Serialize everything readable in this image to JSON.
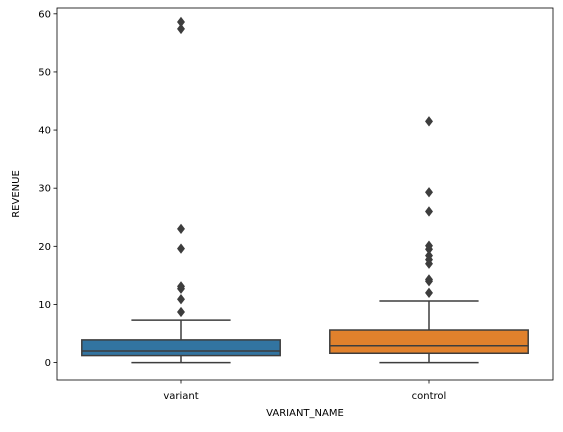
{
  "chart_data": {
    "type": "box",
    "title": "",
    "xlabel": "VARIANT_NAME",
    "ylabel": "REVENUE",
    "ylim": [
      -3,
      61
    ],
    "yticks": [
      0,
      10,
      20,
      30,
      40,
      50,
      60
    ],
    "categories": [
      "variant",
      "control"
    ],
    "colors": [
      "#3274a1",
      "#e1812c"
    ],
    "edge_color": "#3d3d3d",
    "boxes": [
      {
        "name": "variant",
        "whisker_low": 0,
        "q1": 1.2,
        "median": 2.0,
        "q3": 3.9,
        "whisker_high": 7.3,
        "outliers": [
          8.7,
          10.9,
          12.7,
          13.1,
          19.6,
          23.0,
          57.4,
          58.6
        ]
      },
      {
        "name": "control",
        "whisker_low": 0,
        "q1": 1.6,
        "median": 2.9,
        "q3": 5.6,
        "whisker_high": 10.6,
        "outliers": [
          12.0,
          14.0,
          14.3,
          17.0,
          17.7,
          18.4,
          19.5,
          20.1,
          26.0,
          29.3,
          41.5
        ]
      }
    ]
  }
}
